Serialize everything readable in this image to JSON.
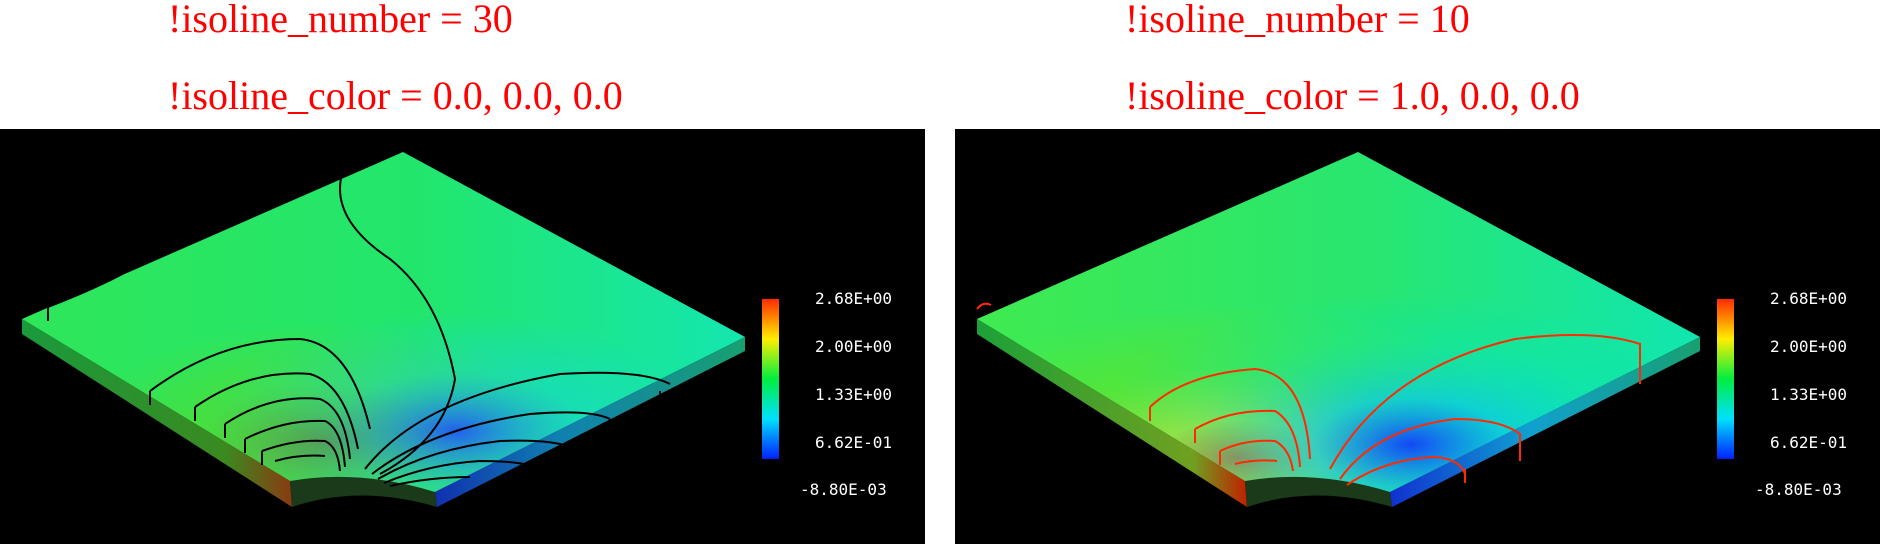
{
  "colors": {
    "caption_red": "#ff0000",
    "panel_bg": "#000000",
    "left_isoline_color": "#000000",
    "right_isoline_color": "#ff0000"
  },
  "panels": [
    {
      "id": "left",
      "caption_line1": "!isoline_number = 30",
      "caption_line2": "!isoline_color = 0.0, 0.0, 0.0",
      "isoline_number": 30,
      "isoline_rgb": [
        0.0,
        0.0,
        0.0
      ],
      "colorbar_labels": [
        "2.68E+00",
        "2.00E+00",
        "1.33E+00",
        "6.62E-01",
        "-8.80E-03"
      ]
    },
    {
      "id": "right",
      "caption_line1": "!isoline_number = 10",
      "caption_line2": "!isoline_color = 1.0, 0.0, 0.0",
      "isoline_number": 10,
      "isoline_rgb": [
        1.0,
        0.0,
        0.0
      ],
      "colorbar_labels": [
        "2.68E+00",
        "2.00E+00",
        "1.33E+00",
        "6.62E-01",
        "-8.80E-03"
      ]
    }
  ]
}
